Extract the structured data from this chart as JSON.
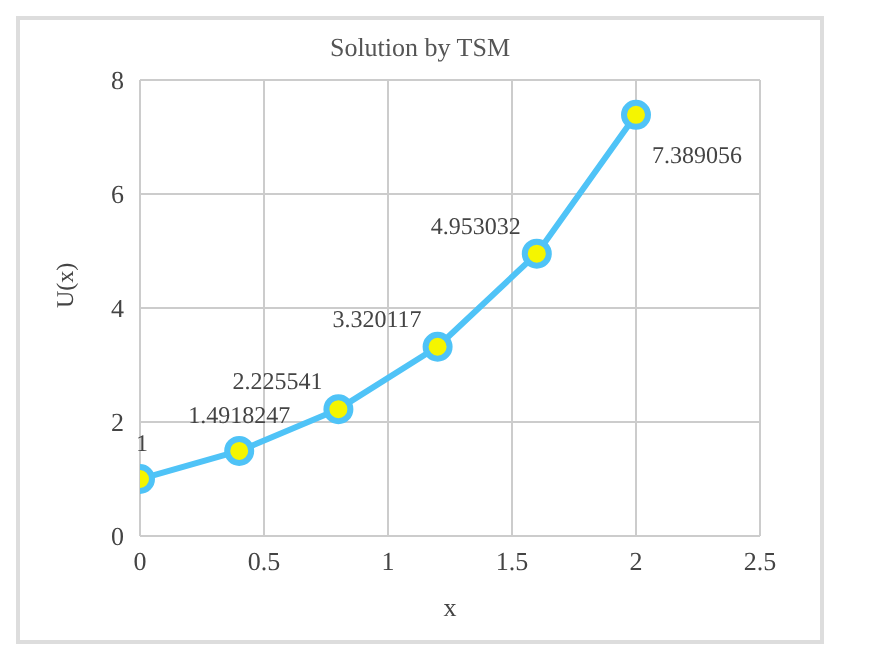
{
  "chart_data": {
    "type": "line",
    "title": "Solution by TSM",
    "xlabel": "x",
    "ylabel": "U(x)",
    "x": [
      0,
      0.4,
      0.8,
      1.2,
      1.6,
      2
    ],
    "series": [
      {
        "color": "#4fc3f7",
        "values": [
          1,
          1.4918247,
          2.225541,
          3.320117,
          4.953032,
          7.389056
        ],
        "value_labels": [
          "1",
          "1.4918247",
          "2.225541",
          "3.320117",
          "4.953032",
          "7.389056"
        ]
      }
    ],
    "xlim": [
      0,
      2.5
    ],
    "xticks": [
      0,
      0.5,
      1,
      1.5,
      2,
      2.5
    ],
    "ylim": [
      0,
      8
    ],
    "yticks": [
      0,
      2,
      4,
      6,
      8
    ],
    "grid": true,
    "marker": "circle",
    "line_style": "solid"
  }
}
